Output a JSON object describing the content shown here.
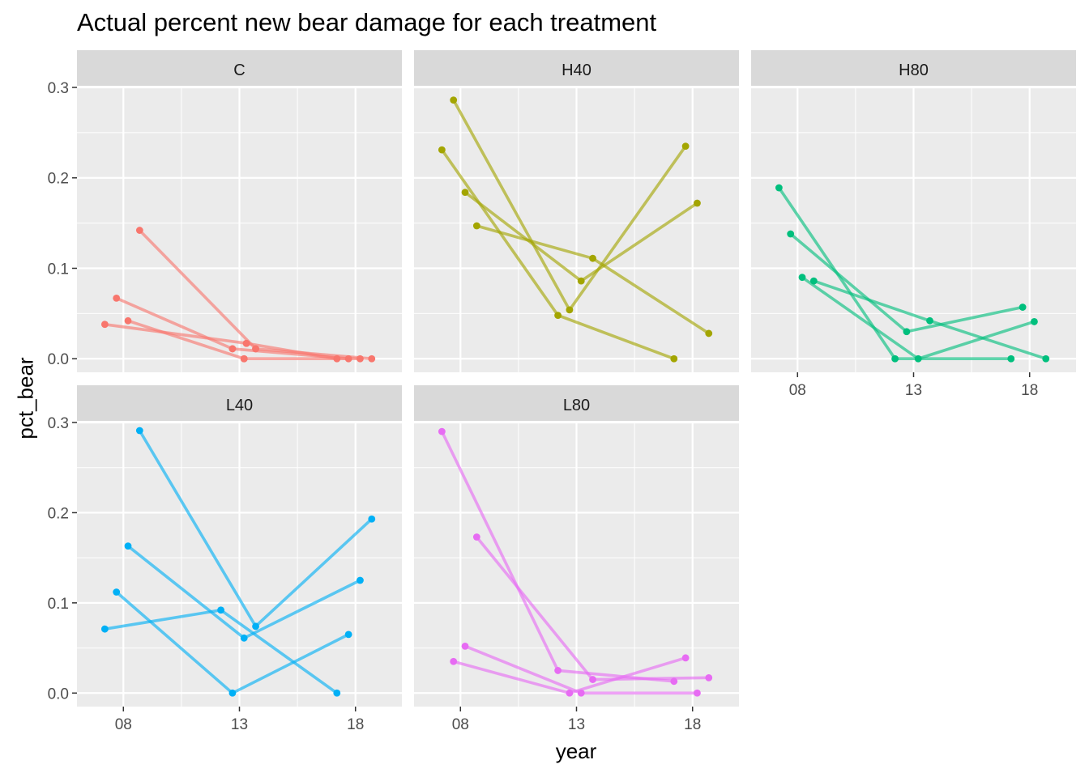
{
  "chart_data": {
    "type": "line",
    "title": "Actual percent new bear damage for each treatment",
    "xlabel": "year",
    "ylabel": "pct_bear",
    "x_ticks": [
      "08",
      "13",
      "18"
    ],
    "x_tick_values": [
      8,
      13,
      18
    ],
    "y_ticks": [
      "0.0",
      "0.1",
      "0.2",
      "0.3"
    ],
    "y_tick_values": [
      0.0,
      0.1,
      0.2,
      0.3
    ],
    "xlim": [
      6.0,
      20.0
    ],
    "ylim": [
      -0.015,
      0.3
    ],
    "grid": true,
    "legend": "none",
    "facets": [
      {
        "label": "C",
        "color": "#F8766D",
        "series": [
          {
            "x": [
              8.7,
              13.7
            ],
            "y": [
              0.142,
              0.011
            ]
          },
          {
            "x": [
              7.7,
              12.7
            ],
            "y": [
              0.067,
              0.011
            ]
          },
          {
            "x": [
              8.2,
              13.2
            ],
            "y": [
              0.042,
              0.0
            ]
          },
          {
            "x": [
              7.2,
              13.3
            ],
            "y": [
              0.038,
              0.017
            ]
          },
          {
            "x": [
              12.7,
              17.7
            ],
            "y": [
              0.011,
              0.0
            ]
          },
          {
            "x": [
              13.7,
              18.7
            ],
            "y": [
              0.011,
              0.0
            ]
          },
          {
            "x": [
              13.2,
              18.2
            ],
            "y": [
              0.0,
              0.0
            ]
          },
          {
            "x": [
              13.3,
              17.2
            ],
            "y": [
              0.017,
              0.0
            ]
          }
        ]
      },
      {
        "label": "H40",
        "color": "#A3A500",
        "series": [
          {
            "x": [
              7.2,
              12.2,
              17.2
            ],
            "y": [
              0.231,
              0.048,
              0.0
            ]
          },
          {
            "x": [
              7.7,
              12.7,
              17.7
            ],
            "y": [
              0.286,
              0.054,
              0.235
            ]
          },
          {
            "x": [
              8.7,
              13.7,
              18.7
            ],
            "y": [
              0.147,
              0.111,
              0.028
            ]
          },
          {
            "x": [
              8.2,
              13.2,
              18.2
            ],
            "y": [
              0.184,
              0.086,
              0.172
            ]
          }
        ]
      },
      {
        "label": "H80",
        "color": "#00BF7D",
        "series": [
          {
            "x": [
              7.2,
              12.2,
              17.2
            ],
            "y": [
              0.189,
              0.0,
              0.0
            ]
          },
          {
            "x": [
              7.7,
              12.7,
              17.7
            ],
            "y": [
              0.138,
              0.03,
              0.057
            ]
          },
          {
            "x": [
              8.2,
              13.2,
              18.2
            ],
            "y": [
              0.09,
              0.0,
              0.041
            ]
          },
          {
            "x": [
              8.7,
              13.7,
              18.7
            ],
            "y": [
              0.086,
              0.042,
              0.0
            ]
          }
        ]
      },
      {
        "label": "L40",
        "color": "#00B0F6",
        "series": [
          {
            "x": [
              7.2,
              12.2,
              17.2
            ],
            "y": [
              0.071,
              0.092,
              0.0
            ]
          },
          {
            "x": [
              7.7,
              12.7,
              17.7
            ],
            "y": [
              0.112,
              0.0,
              0.065
            ]
          },
          {
            "x": [
              8.2,
              13.2,
              18.2
            ],
            "y": [
              0.163,
              0.061,
              0.125
            ]
          },
          {
            "x": [
              8.7,
              13.7,
              18.7
            ],
            "y": [
              0.291,
              0.074,
              0.193
            ]
          }
        ]
      },
      {
        "label": "L80",
        "color": "#E76BF3",
        "series": [
          {
            "x": [
              7.2,
              12.2,
              17.2
            ],
            "y": [
              0.29,
              0.025,
              0.013
            ]
          },
          {
            "x": [
              7.7,
              12.7,
              17.7
            ],
            "y": [
              0.035,
              0.0,
              0.039
            ]
          },
          {
            "x": [
              8.2,
              13.2,
              18.2
            ],
            "y": [
              0.052,
              0.0,
              0.0
            ]
          },
          {
            "x": [
              8.7,
              13.7,
              18.7
            ],
            "y": [
              0.173,
              0.015,
              0.017
            ]
          }
        ]
      }
    ]
  }
}
